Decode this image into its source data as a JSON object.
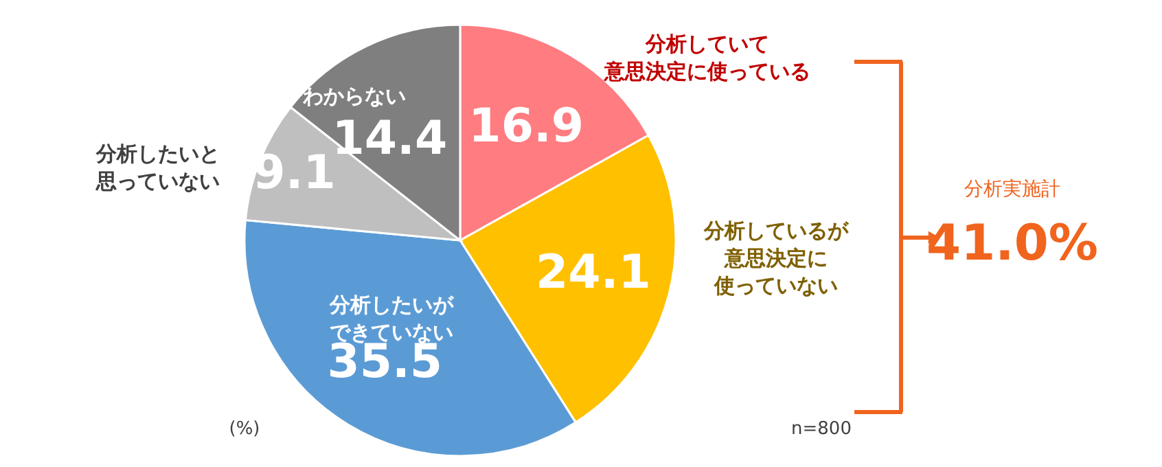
{
  "chart_data": {
    "type": "pie",
    "categories": [
      "分析していて意思決定に使っている",
      "分析しているが意思決定に使っていない",
      "分析したいができていない",
      "分析したいと思っていない",
      "わからない"
    ],
    "values": [
      16.9,
      24.1,
      35.5,
      9.1,
      14.4
    ],
    "colors": [
      "#ff7c80",
      "#ffc000",
      "#5b9bd5",
      "#bfbfbf",
      "#7f7f7f"
    ],
    "data_labels": true,
    "annotations": [
      "(%)",
      "n=800",
      "分析実施計",
      "41.0%"
    ]
  }
}
